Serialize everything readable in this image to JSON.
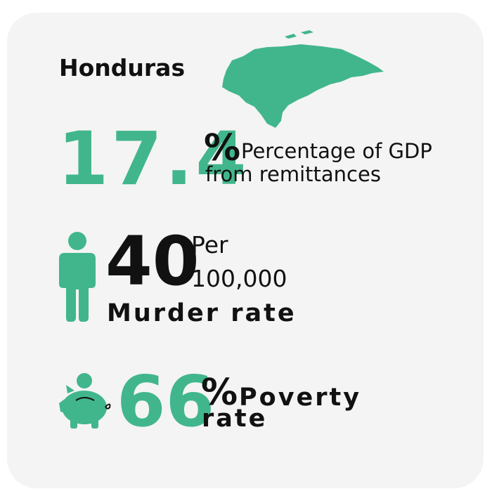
{
  "title": "Honduras",
  "stats": [
    {
      "value": "17.4",
      "unit": "%",
      "label_lines": [
        "Percentage of GDP",
        "from remittances"
      ]
    },
    {
      "value": "40",
      "unit_lines": [
        "Per",
        "100,000"
      ],
      "label": "Murder rate"
    },
    {
      "value": "66",
      "unit": "%",
      "label_lines": [
        "Poverty",
        "rate"
      ]
    }
  ]
}
